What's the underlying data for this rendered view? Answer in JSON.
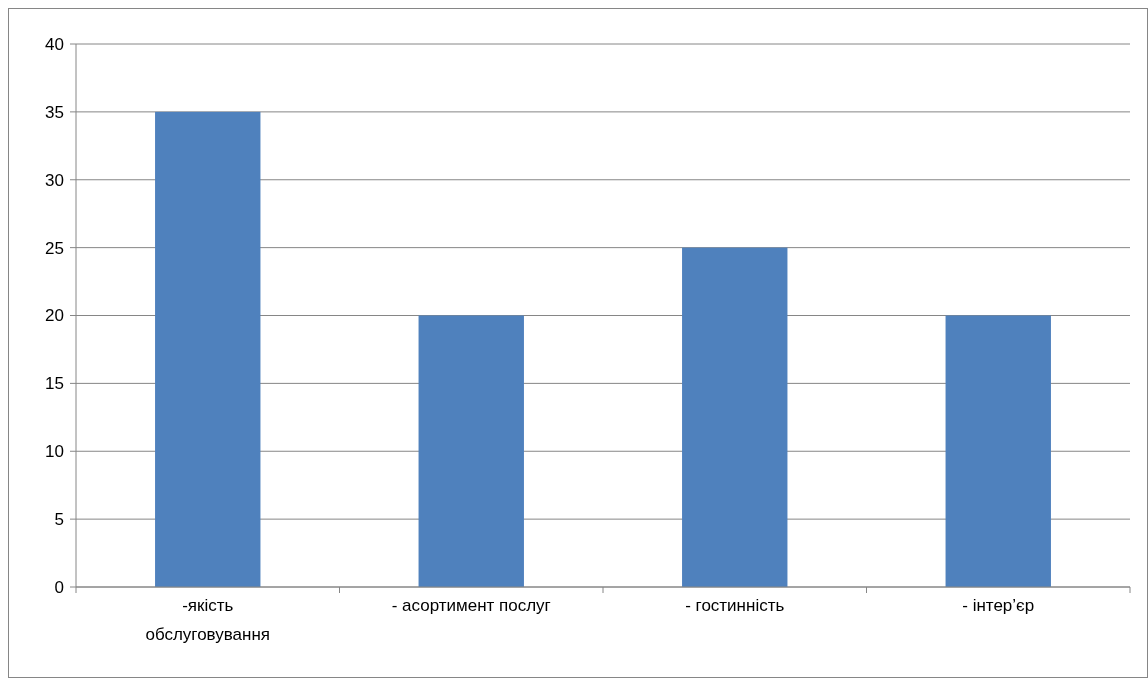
{
  "chart_data": {
    "type": "bar",
    "categories": [
      "-якість обслуговування",
      "- асортимент послуг",
      "- гостинність",
      "- інтер’єр"
    ],
    "values": [
      35,
      20,
      25,
      20
    ],
    "color": "#4f81bd",
    "ylim": [
      0,
      40
    ],
    "yticks": [
      0,
      5,
      10,
      15,
      20,
      25,
      30,
      35,
      40
    ],
    "grid": "y"
  }
}
